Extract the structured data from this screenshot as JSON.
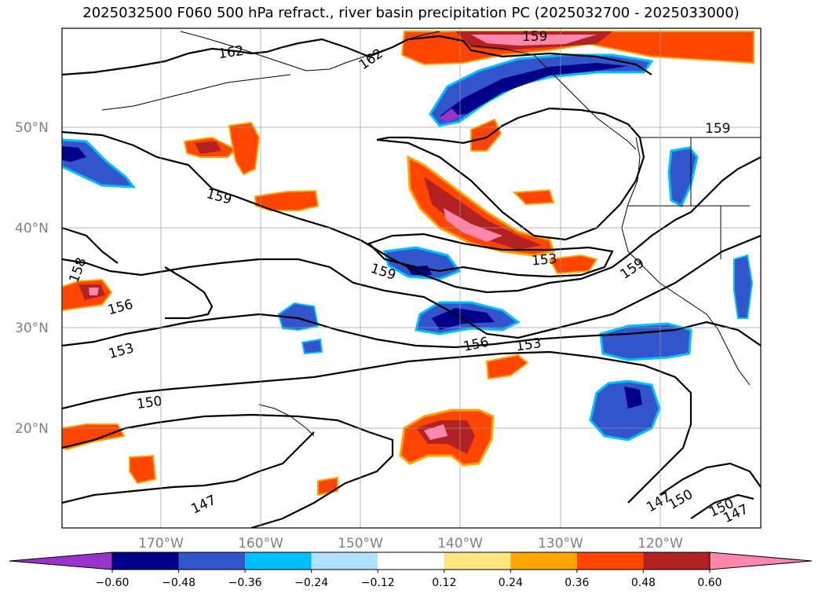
{
  "title": "2025032500 F060 500 hPa refract., river basin precipitation PC (2025032700 - 2025033000)",
  "lat_labels": [
    "50°N",
    "40°N",
    "30°N",
    "20°N"
  ],
  "lon_labels": [
    "170°W",
    "160°W",
    "150°W",
    "140°W",
    "130°W",
    "120°W"
  ],
  "contour_labels": [
    "162",
    "162",
    "159",
    "159",
    "159",
    "159",
    "159",
    "158",
    "156",
    "156",
    "153",
    "153",
    "153",
    "150",
    "150",
    "150",
    "147",
    "147",
    "147"
  ],
  "colorbar": {
    "ticks": [
      "−0.60",
      "−0.48",
      "−0.36",
      "−0.24",
      "−0.12",
      "0.12",
      "0.24",
      "0.36",
      "0.48",
      "0.60"
    ],
    "colors": [
      "#9933cc",
      "#00008b",
      "#3355cc",
      "#00bfff",
      "#b0e0ff",
      "#ffffff",
      "#ffe680",
      "#ffa500",
      "#ff4500",
      "#b22222",
      "#ff88aa"
    ]
  },
  "fill_colors": {
    "neg_strong": "#00008b",
    "neg_med": "#3355cc",
    "neg_light": "#00bfff",
    "pos_light": "#ffe680",
    "pos_med": "#ffa500",
    "pos_strong": "#ff4500",
    "pos_darker": "#b22222",
    "pos_max": "#ff88aa",
    "purple": "#9933cc"
  }
}
